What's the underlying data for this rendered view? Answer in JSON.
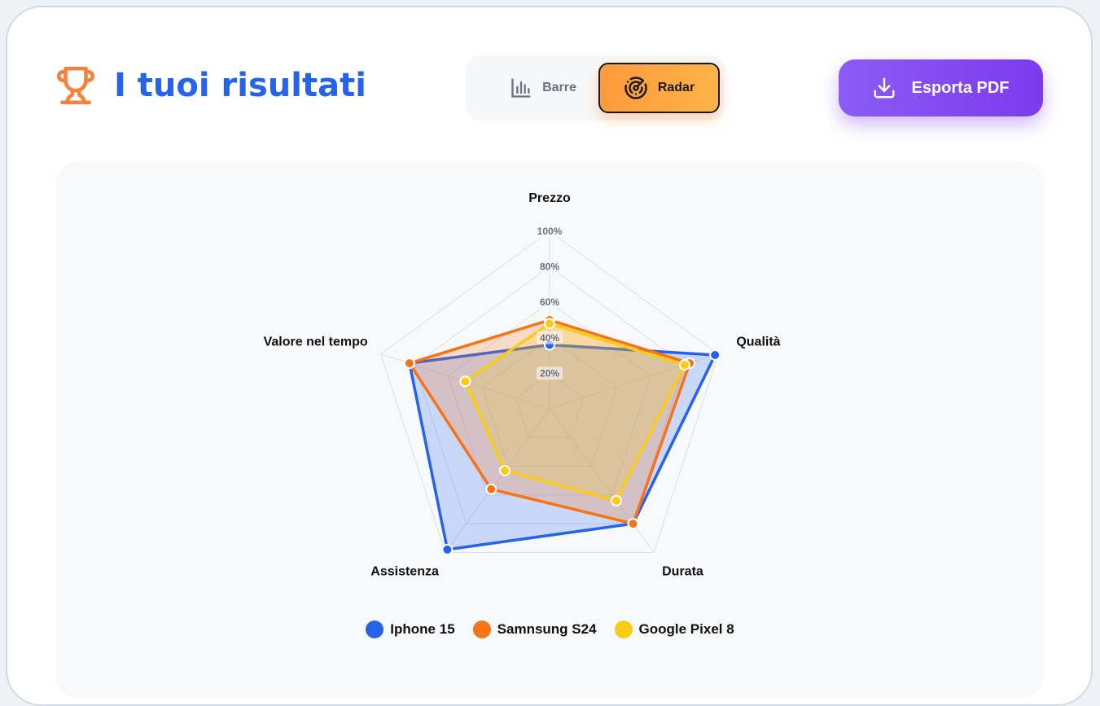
{
  "header": {
    "title": "I tuoi risultati",
    "trophy_icon": "trophy-icon",
    "trophy_color": "#f5823a",
    "title_color": "#2563eb"
  },
  "view_toggle": {
    "options": [
      {
        "label": "Barre",
        "icon": "bar-chart-icon",
        "active": false
      },
      {
        "label": "Radar",
        "icon": "radar-icon",
        "active": true
      }
    ]
  },
  "export_button": {
    "label": "Esporta PDF",
    "icon": "download-icon"
  },
  "chart_data": {
    "type": "radar",
    "axes": [
      "Prezzo",
      "Qualità",
      "Durata",
      "Assistenza",
      "Valore nel tempo"
    ],
    "tick_labels": [
      "20%",
      "40%",
      "60%",
      "80%",
      "100%"
    ],
    "ylim": [
      0,
      100
    ],
    "grid": true,
    "legend_position": "bottom",
    "series": [
      {
        "name": "Iphone 15",
        "color": "#2563eb",
        "values": [
          36,
          98,
          80,
          98,
          83
        ]
      },
      {
        "name": "Samnsung S24",
        "color": "#f97316",
        "values": [
          50,
          83,
          80,
          56,
          83
        ]
      },
      {
        "name": "Google Pixel 8",
        "color": "#facc15",
        "values": [
          48,
          80,
          64,
          43,
          50
        ]
      }
    ]
  }
}
